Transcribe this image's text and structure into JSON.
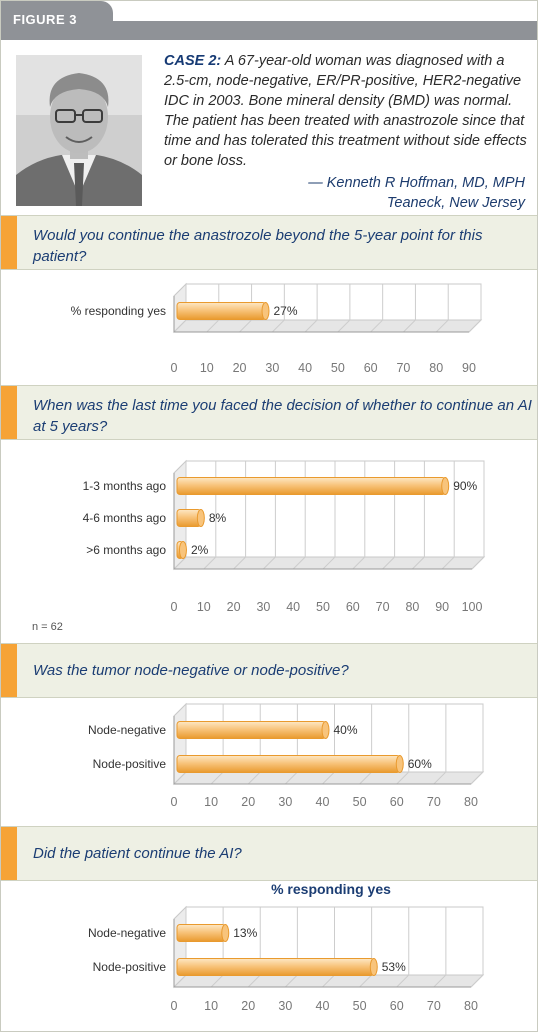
{
  "figure_label": "FIGURE 3",
  "case": {
    "label": "CASE 2:",
    "text": " A 67-year-old woman was diagnosed with a 2.5-cm, node-negative, ER/PR-positive, HER2-negative IDC in 2003. Bone mineral density (BMD) was normal. The patient has been treated with anastrozole since that time and has tolerated this treatment without side effects or bone loss.",
    "author": "— Kenneth R Hoffman, MD, MPH",
    "location": "Teaneck, New Jersey"
  },
  "questions": [
    "Would you continue the anastrozole beyond the 5-year point for this patient?",
    "When was the last time you faced the decision of whether to continue an AI at 5 years?",
    "Was the tumor node-negative or node-positive?",
    "Did the patient continue the AI?"
  ],
  "n_note": "n = 62",
  "colors": {
    "bar_fill": "#f8c47c",
    "bar_light": "#fde8c5",
    "bar_edge": "#e99a2e",
    "accent": "#f6a336",
    "question_text": "#1b3d73"
  },
  "chart_data": [
    {
      "type": "bar",
      "orientation": "horizontal",
      "title": "",
      "categories": [
        "% responding yes"
      ],
      "values": [
        27
      ],
      "value_labels": [
        "27%"
      ],
      "xlim": [
        0,
        90
      ],
      "xticks": [
        0,
        10,
        20,
        30,
        40,
        50,
        60,
        70,
        80,
        90
      ],
      "grid": true
    },
    {
      "type": "bar",
      "orientation": "horizontal",
      "title": "",
      "categories": [
        "1-3 months ago",
        "4-6 months ago",
        ">6 months ago"
      ],
      "values": [
        90,
        8,
        2
      ],
      "value_labels": [
        "90%",
        "8%",
        "2%"
      ],
      "xlim": [
        0,
        100
      ],
      "xticks": [
        0,
        10,
        20,
        30,
        40,
        50,
        60,
        70,
        80,
        90,
        100
      ],
      "grid": true
    },
    {
      "type": "bar",
      "orientation": "horizontal",
      "title": "",
      "categories": [
        "Node-negative",
        "Node-positive"
      ],
      "values": [
        40,
        60
      ],
      "value_labels": [
        "40%",
        "60%"
      ],
      "xlim": [
        0,
        80
      ],
      "xticks": [
        0,
        10,
        20,
        30,
        40,
        50,
        60,
        70,
        80
      ],
      "grid": true
    },
    {
      "type": "bar",
      "orientation": "horizontal",
      "title": "% responding yes",
      "categories": [
        "Node-negative",
        "Node-positive"
      ],
      "values": [
        13,
        53
      ],
      "value_labels": [
        "13%",
        "53%"
      ],
      "xlim": [
        0,
        80
      ],
      "xticks": [
        0,
        10,
        20,
        30,
        40,
        50,
        60,
        70,
        80
      ],
      "grid": true
    }
  ]
}
